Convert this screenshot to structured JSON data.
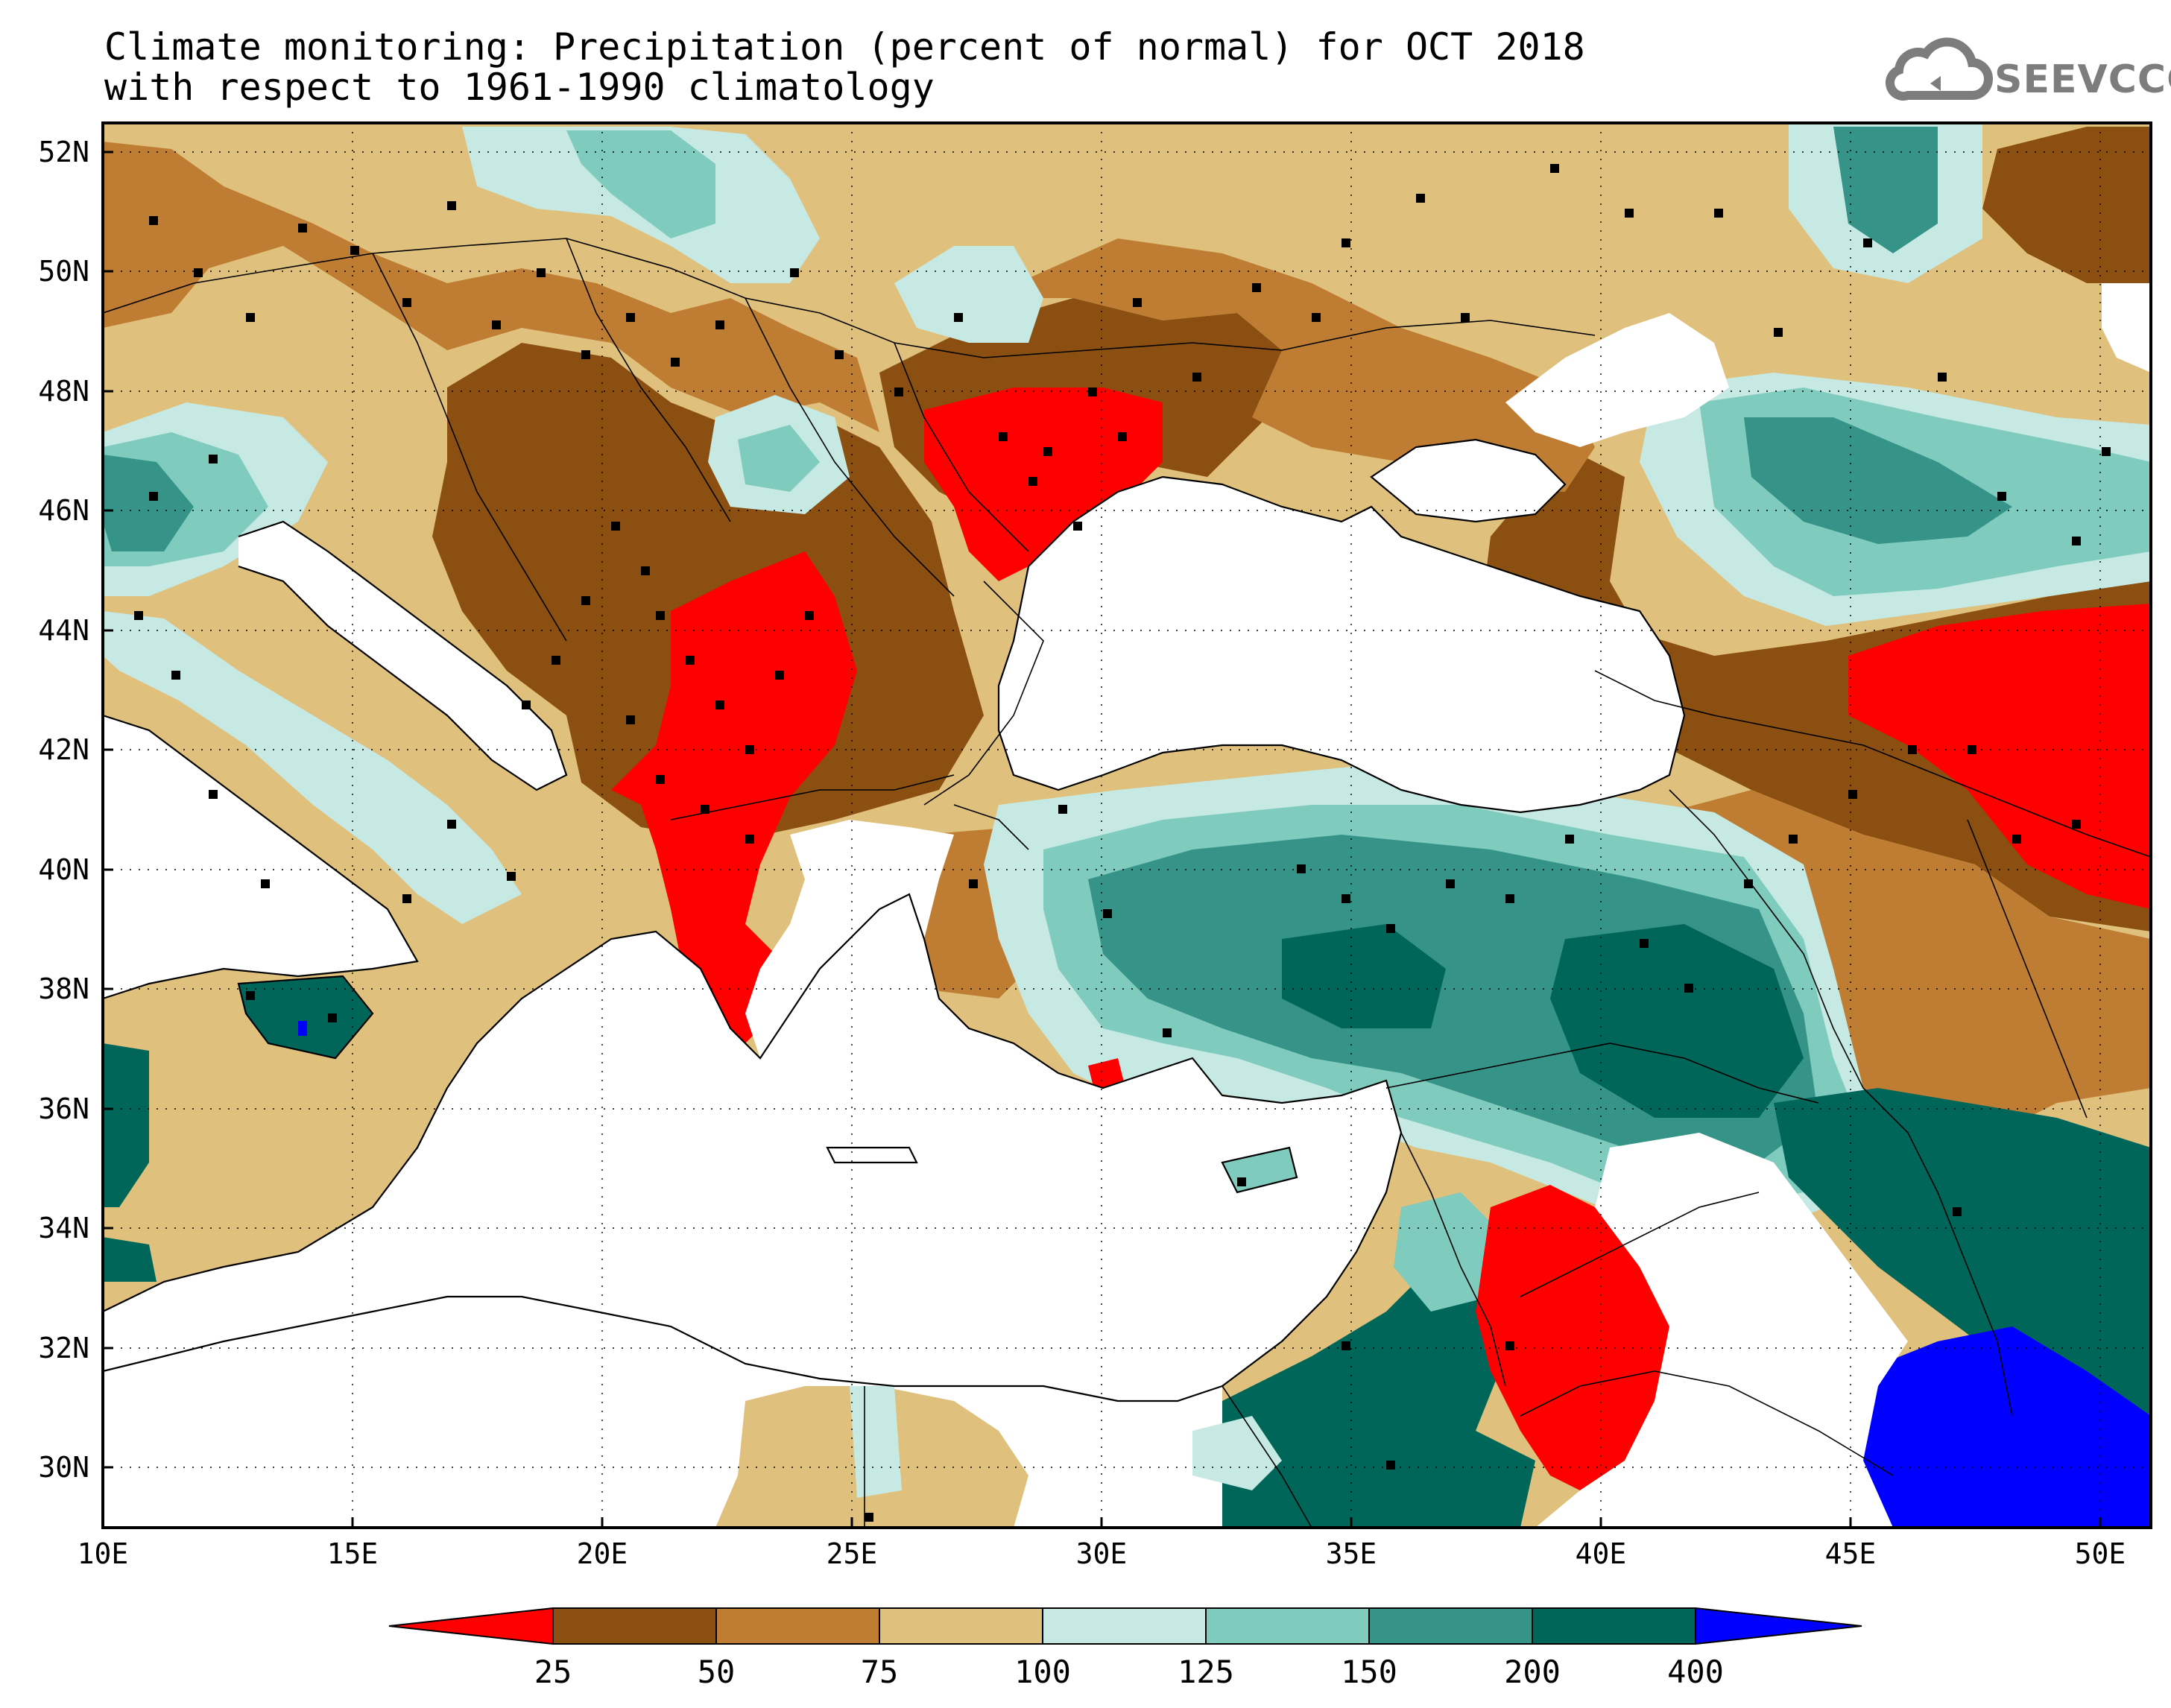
{
  "title": {
    "line1": "Climate monitoring: Precipitation (percent of normal) for OCT 2018",
    "line2": "with respect to 1961-1990 climatology"
  },
  "logo": {
    "text": "SEEVCCC",
    "icon": "cloud-icon"
  },
  "axes": {
    "x_ticks": [
      "10E",
      "15E",
      "20E",
      "25E",
      "30E",
      "35E",
      "40E",
      "45E",
      "50E"
    ],
    "y_ticks": [
      "52N",
      "50N",
      "48N",
      "46N",
      "44N",
      "42N",
      "40N",
      "38N",
      "36N",
      "34N",
      "32N",
      "30N"
    ]
  },
  "legend": {
    "labels": [
      "25",
      "50",
      "75",
      "100",
      "125",
      "150",
      "200",
      "400"
    ],
    "colors": [
      "#ff0000",
      "#8b4f12",
      "#bf7d33",
      "#dfc07c",
      "#c6e9e3",
      "#7fcbbd",
      "#359387",
      "#00665a",
      "#0000ff"
    ]
  },
  "map_data": {
    "type": "contour-map",
    "variable": "Precipitation (percent of normal)",
    "period": "OCT 2018",
    "lon_range": [
      10,
      51
    ],
    "lat_range": [
      29,
      52.5
    ]
  }
}
